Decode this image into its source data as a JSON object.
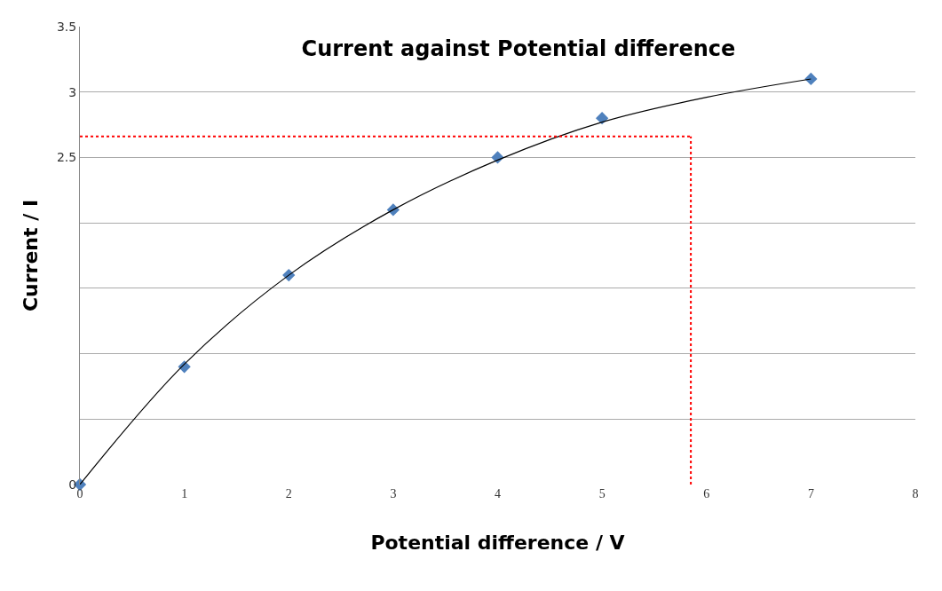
{
  "chart_data": {
    "type": "scatter",
    "title": "Current against Potential difference",
    "xlabel": "Potential difference / V",
    "ylabel": "Current / I",
    "x": [
      0,
      1,
      2,
      3,
      4,
      5,
      7
    ],
    "series": [
      {
        "color": "#4f81bd",
        "marker": "diamond",
        "values": [
          0,
          0.9,
          1.6,
          2.1,
          2.5,
          2.8,
          3.1
        ]
      },
      {
        "type": "line",
        "color": "#000000",
        "marker": "none",
        "x": [
          0,
          1,
          2,
          3,
          4,
          5,
          6,
          7
        ],
        "values": [
          0,
          0.92,
          1.6,
          2.1,
          2.48,
          2.77,
          2.96,
          3.1
        ]
      }
    ],
    "xlim": [
      0,
      8
    ],
    "xticks": [
      0,
      1,
      2,
      3,
      4,
      5,
      6,
      7,
      8
    ],
    "ylim": [
      0,
      3.5
    ],
    "yticks": [
      0,
      {
        "value": 0.5,
        "label": null
      },
      {
        "value": 1,
        "label": null
      },
      {
        "value": 1.5,
        "label": null
      },
      {
        "value": 2,
        "label": null
      },
      2.5,
      3,
      3.5
    ],
    "grid": "y",
    "ref_lines": [
      {
        "axis": "y",
        "value": 2.66,
        "color": "#ff0000",
        "line_style": "dotted"
      },
      {
        "axis": "x",
        "value": 5.85,
        "color": "#ff0000",
        "line_style": "dotted"
      }
    ],
    "legend": false
  }
}
